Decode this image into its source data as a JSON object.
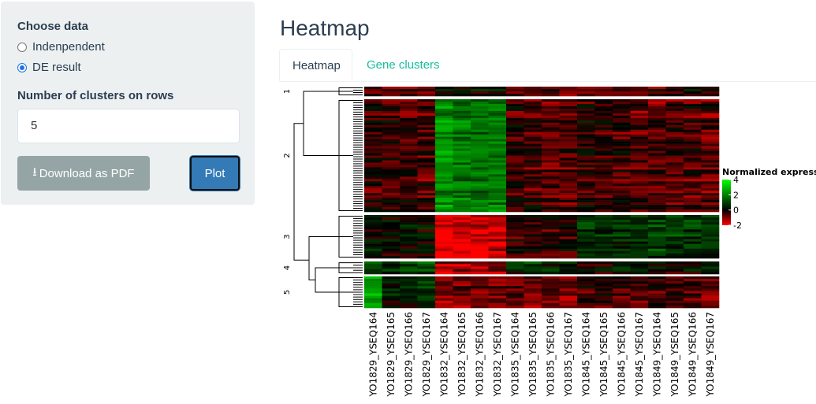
{
  "sidebar": {
    "choose_label": "Choose data",
    "options": [
      "Indenpendent",
      "DE result"
    ],
    "selected": "DE result",
    "clusters_label": "Number of clusters on rows",
    "clusters_value": "5",
    "download_label": "Download as PDF",
    "plot_label": "Plot"
  },
  "main": {
    "title": "Heatmap",
    "tabs": [
      {
        "label": "Heatmap",
        "active": true
      },
      {
        "label": "Gene clusters",
        "active": false
      }
    ]
  },
  "colors": {
    "accent": "#337ab7",
    "tab_link": "#18bc9c",
    "low": "#ff0000",
    "mid": "#000000",
    "high": "#00ff00"
  },
  "chart_data": {
    "type": "heatmap",
    "columns": [
      "YO1829_YSEQ164",
      "YO1829_YSEQ165",
      "YO1829_YSEQ166",
      "YO1829_YSEQ167",
      "YO1832_YSEQ164",
      "YO1832_YSEQ165",
      "YO1832_YSEQ166",
      "YO1832_YSEQ167",
      "YO1835_YSEQ164",
      "YO1835_YSEQ165",
      "YO1835_YSEQ166",
      "YO1835_YSEQ167",
      "YO1845_YSEQ164",
      "YO1845_YSEQ165",
      "YO1845_YSEQ166",
      "YO1845_YSEQ167",
      "YO1849_YSEQ164",
      "YO1849_YSEQ165",
      "YO1849_YSEQ166",
      "YO1849_YSEQ167"
    ],
    "row_clusters": [
      "1",
      "2",
      "3",
      "4",
      "5"
    ],
    "cluster_mean_profiles": [
      [
        -0.5,
        -0.6,
        -0.6,
        -0.8,
        0.3,
        0.2,
        0.2,
        0.1,
        -0.6,
        -0.5,
        -0.7,
        -0.8,
        -0.4,
        -0.5,
        -0.4,
        -0.5,
        -0.4,
        -0.3,
        0.2,
        -0.5
      ],
      [
        -0.3,
        -0.4,
        -0.5,
        -0.6,
        2.2,
        1.8,
        1.8,
        1.9,
        -0.4,
        -0.5,
        -0.6,
        -0.6,
        -0.2,
        -0.3,
        -0.5,
        -0.6,
        -0.6,
        -0.6,
        -0.6,
        -0.7
      ],
      [
        0.2,
        0.0,
        0.1,
        0.2,
        -2,
        -1.8,
        -1.7,
        -1.6,
        -0.4,
        -0.3,
        -0.3,
        -0.3,
        0.8,
        0.7,
        0.6,
        0.7,
        0.9,
        0.9,
        0.8,
        0.7
      ],
      [
        1.0,
        0.8,
        0.7,
        1.0,
        -1.4,
        -1.3,
        -1.4,
        -1.2,
        0.6,
        0.9,
        0.4,
        0.2,
        0.0,
        -0.2,
        0.3,
        0.3,
        0.2,
        0.1,
        0.1,
        0.4
      ],
      [
        2.5,
        0.3,
        0.1,
        0.9,
        -1.0,
        -1.0,
        -0.9,
        -0.9,
        -0.8,
        -0.9,
        -0.9,
        -1.0,
        -0.4,
        -0.5,
        -0.6,
        -0.6,
        -0.4,
        -0.5,
        -0.6,
        -0.8
      ]
    ],
    "legend": {
      "title": "Normalized expression",
      "ticks": [
        "4",
        "2",
        "0",
        "-2"
      ],
      "range": [
        -2,
        4
      ]
    }
  }
}
